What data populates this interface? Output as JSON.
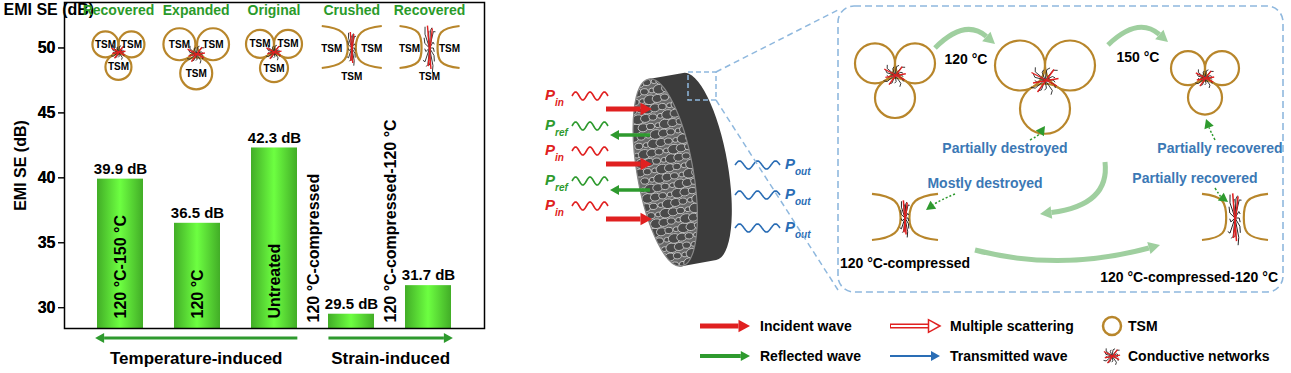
{
  "chart_data": {
    "type": "bar",
    "y_label": "EMI SE (dB)",
    "categories": [
      "120 °C-150 °C",
      "120 °C",
      "Untreated",
      "120 °C-compressed",
      "120 °C-compressed-120 °C"
    ],
    "values": [
      39.9,
      36.5,
      42.3,
      29.5,
      31.7
    ],
    "value_labels": [
      "39.9 dB",
      "36.5 dB",
      "42.3 dB",
      "29.5 dB",
      "31.7 dB"
    ],
    "color": "#4fcf2f",
    "ylim": [
      28.4,
      53.5
    ],
    "yticks": [
      30,
      35,
      40,
      45,
      50
    ],
    "data_labels": true,
    "tick_labels": "y",
    "annotations": {
      "state_labels": [
        "Recovered",
        "Expanded",
        "Original",
        "Crushed",
        "Recovered"
      ],
      "cell_label": "TSM",
      "groups": [
        {
          "text": "Temperature-induced",
          "categories": [
            "120 °C-150 °C",
            "120 °C",
            "Untreated"
          ],
          "direction": "left"
        },
        {
          "text": "Strain-induced",
          "categories": [
            "120 °C-compressed",
            "120 °C-compressed-120 °C"
          ],
          "direction": "right"
        }
      ]
    }
  },
  "diagram": {
    "waves": {
      "incident": "Pin",
      "reflected": "Pref",
      "transmitted": "Pout"
    },
    "panel": {
      "steps": [
        "120 °C",
        "150 °C"
      ],
      "top_notes": [
        "Partially destroyed",
        "Partially recovered"
      ],
      "bottom_notes": [
        "Mostly destroyed",
        "Partially recovered"
      ],
      "captions": [
        "120 °C-compressed",
        "120 °C-compressed-120 °C"
      ]
    },
    "legend": [
      {
        "label": "Incident wave",
        "symbol": "incident"
      },
      {
        "label": "Multiple scattering",
        "symbol": "scattering"
      },
      {
        "label": "TSM",
        "symbol": "tsm"
      },
      {
        "label": "Reflected wave",
        "symbol": "reflected"
      },
      {
        "label": "Transmitted wave",
        "symbol": "transmitted"
      },
      {
        "label": "Conductive networks",
        "symbol": "network"
      }
    ]
  }
}
